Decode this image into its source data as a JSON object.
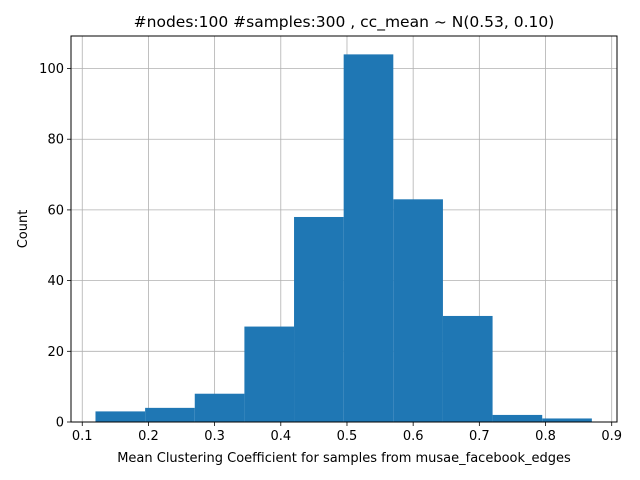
{
  "chart_data": {
    "type": "bar",
    "title": "#nodes:100 #samples:300 , cc_mean ~ N(0.53, 0.10)",
    "xlabel": "Mean Clustering Coefficient for samples from musae_facebook_edges",
    "ylabel": "Count",
    "bins": [
      {
        "x0": 0.12,
        "x1": 0.195,
        "count": 3
      },
      {
        "x0": 0.195,
        "x1": 0.27,
        "count": 4
      },
      {
        "x0": 0.27,
        "x1": 0.345,
        "count": 8
      },
      {
        "x0": 0.345,
        "x1": 0.42,
        "count": 27
      },
      {
        "x0": 0.42,
        "x1": 0.495,
        "count": 58
      },
      {
        "x0": 0.495,
        "x1": 0.57,
        "count": 104
      },
      {
        "x0": 0.57,
        "x1": 0.645,
        "count": 63
      },
      {
        "x0": 0.645,
        "x1": 0.72,
        "count": 30
      },
      {
        "x0": 0.72,
        "x1": 0.795,
        "count": 2
      },
      {
        "x0": 0.795,
        "x1": 0.87,
        "count": 1
      }
    ],
    "xlim": [
      0.083,
      0.908
    ],
    "ylim": [
      0,
      109.2
    ],
    "xticks": [
      0.1,
      0.2,
      0.3,
      0.4,
      0.5,
      0.6,
      0.7,
      0.8,
      0.9
    ],
    "xtick_labels": [
      "0.1",
      "0.2",
      "0.3",
      "0.4",
      "0.5",
      "0.6",
      "0.7",
      "0.8",
      "0.9"
    ],
    "yticks": [
      0,
      20,
      40,
      60,
      80,
      100
    ],
    "ytick_labels": [
      "0",
      "20",
      "40",
      "60",
      "80",
      "100"
    ],
    "grid": true,
    "bar_color": "#1f77b4",
    "grid_color": "#b0b0b0"
  }
}
